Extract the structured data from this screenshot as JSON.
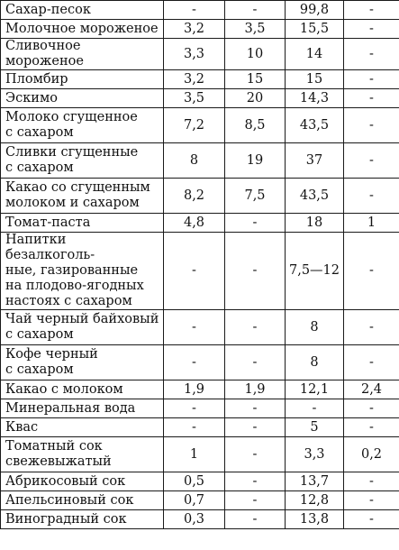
{
  "table": {
    "rows": [
      {
        "name": "Сахар-песок",
        "v1": "-",
        "v2": "-",
        "v3": "99,8",
        "v4": "-",
        "lines": 1
      },
      {
        "name": "Молочное мороженое",
        "v1": "3,2",
        "v2": "3,5",
        "v3": "15,5",
        "v4": "-",
        "lines": 1
      },
      {
        "name": "Сливочное мороженое",
        "v1": "3,3",
        "v2": "10",
        "v3": "14",
        "v4": "-",
        "lines": 1
      },
      {
        "name": "Пломбир",
        "v1": "3,2",
        "v2": "15",
        "v3": "15",
        "v4": "-",
        "lines": 1
      },
      {
        "name": "Эскимо",
        "v1": "3,5",
        "v2": "20",
        "v3": "14,3",
        "v4": "-",
        "lines": 1
      },
      {
        "name": "Молоко сгущенное\nс сахаром",
        "v1": "7,2",
        "v2": "8,5",
        "v3": "43,5",
        "v4": "-",
        "lines": 2
      },
      {
        "name": "Сливки сгущенные\nс сахаром",
        "v1": "8",
        "v2": "19",
        "v3": "37",
        "v4": "-",
        "lines": 2
      },
      {
        "name": "Какао со сгущенным\nмолоком и сахаром",
        "v1": "8,2",
        "v2": "7,5",
        "v3": "43,5",
        "v4": "-",
        "lines": 2
      },
      {
        "name": "Томат-паста",
        "v1": "4,8",
        "v2": "-",
        "v3": "18",
        "v4": "1",
        "lines": 1
      },
      {
        "name": "Напитки безалкоголь-\nные, газированные\nна плодово-ягодных\nнастоях с сахаром",
        "v1": "-",
        "v2": "-",
        "v3": "7,5—12",
        "v4": "-",
        "lines": 4
      },
      {
        "name": "Чай черный байховый\nс сахаром",
        "v1": "-",
        "v2": "-",
        "v3": "8",
        "v4": "-",
        "lines": 2
      },
      {
        "name": "Кофе черный\nс сахаром",
        "v1": "-",
        "v2": "-",
        "v3": "8",
        "v4": "-",
        "lines": 2
      },
      {
        "name": "Какао с молоком",
        "v1": "1,9",
        "v2": "1,9",
        "v3": "12,1",
        "v4": "2,4",
        "lines": 1
      },
      {
        "name": "Минеральная вода",
        "v1": "-",
        "v2": "-",
        "v3": "-",
        "v4": "-",
        "lines": 1
      },
      {
        "name": "Квас",
        "v1": "-",
        "v2": "-",
        "v3": "5",
        "v4": "-",
        "lines": 1
      },
      {
        "name": "Томатный сок\nсвежевыжатый",
        "v1": "1",
        "v2": "-",
        "v3": "3,3",
        "v4": "0,2",
        "lines": 2
      },
      {
        "name": "Абрикосовый сок",
        "v1": "0,5",
        "v2": "-",
        "v3": "13,7",
        "v4": "-",
        "lines": 1
      },
      {
        "name": "Апельсиновый сок",
        "v1": "0,7",
        "v2": "-",
        "v3": "12,8",
        "v4": "-",
        "lines": 1
      },
      {
        "name": "Виноградный сок",
        "v1": "0,3",
        "v2": "-",
        "v3": "13,8",
        "v4": "-",
        "lines": 1
      }
    ]
  }
}
